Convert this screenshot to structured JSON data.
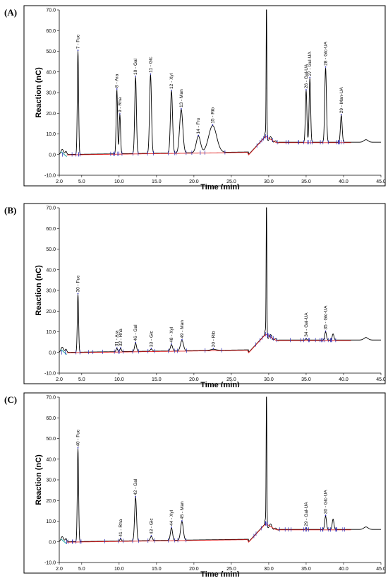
{
  "chart_data": [
    {
      "type": "line",
      "panel_label": "(A)",
      "xlabel": "Time (min)",
      "ylabel": "Reaction (nC)",
      "xlim": [
        2.0,
        45.0
      ],
      "ylim": [
        -10.0,
        70.0
      ],
      "x_ticks": [
        "2.0",
        "5.0",
        "10.0",
        "15.0",
        "20.0",
        "25.0",
        "30.0",
        "35.0",
        "40.0",
        "45.0"
      ],
      "x_tick_values": [
        2,
        5,
        10,
        15,
        20,
        25,
        30,
        35,
        40,
        45
      ],
      "y_ticks": [
        "-10.0",
        "0.0",
        "10.0",
        "20.0",
        "30.0",
        "40.0",
        "50.0",
        "60.0",
        "70.0"
      ],
      "y_tick_values": [
        -10,
        0,
        10,
        20,
        30,
        40,
        50,
        60,
        70
      ],
      "grid": false,
      "baseline_level": 6.0,
      "peaks": [
        {
          "label": "7 - Fuc",
          "time": 4.5,
          "height": 50,
          "width": 0.12
        },
        {
          "label": "8 - Ara",
          "time": 9.7,
          "height": 31,
          "width": 0.13
        },
        {
          "label": "9 - Rha",
          "time": 10.1,
          "height": 19,
          "width": 0.13
        },
        {
          "label": "10 - Gal",
          "time": 12.2,
          "height": 37,
          "width": 0.16
        },
        {
          "label": "11 - Glc",
          "time": 14.2,
          "height": 38,
          "width": 0.18
        },
        {
          "label": "12 - Xyl",
          "time": 17.0,
          "height": 30,
          "width": 0.2
        },
        {
          "label": "13 - Man",
          "time": 18.3,
          "height": 21,
          "width": 0.3
        },
        {
          "label": "14 - Fru",
          "time": 20.6,
          "height": 8,
          "width": 0.4
        },
        {
          "label": "15 - Rib",
          "time": 22.5,
          "height": 13,
          "width": 0.75
        },
        {
          "label": "",
          "time": 29.7,
          "height": 70,
          "width": 0.06
        },
        {
          "label": "26 - Gal-UA",
          "time": 35.0,
          "height": 25,
          "width": 0.14
        },
        {
          "label": "27 - Gul-UA",
          "time": 35.5,
          "height": 31,
          "width": 0.14
        },
        {
          "label": "28 - Glc-UA",
          "time": 37.6,
          "height": 36,
          "width": 0.16
        },
        {
          "label": "29 - Man-UA",
          "time": 39.7,
          "height": 13,
          "width": 0.16
        }
      ]
    },
    {
      "type": "line",
      "panel_label": "(B)",
      "xlabel": "Time (min)",
      "ylabel": "Reaction (nC)",
      "xlim": [
        2.0,
        45.0
      ],
      "ylim": [
        -10.0,
        70.0
      ],
      "x_ticks": [
        "2.0",
        "5.0",
        "10.0",
        "15.0",
        "20.0",
        "25.0",
        "30.0",
        "35.0",
        "40.0",
        "45.0"
      ],
      "x_tick_values": [
        2,
        5,
        10,
        15,
        20,
        25,
        30,
        35,
        40,
        45
      ],
      "y_ticks": [
        "-10.0",
        "0.0",
        "10.0",
        "20.0",
        "30.0",
        "40.0",
        "50.0",
        "60.0",
        "70.0"
      ],
      "y_tick_values": [
        -10,
        0,
        10,
        20,
        30,
        40,
        50,
        60,
        70
      ],
      "grid": false,
      "baseline_level": 6.0,
      "peaks": [
        {
          "label": "30 - Fuc",
          "time": 4.5,
          "height": 28,
          "width": 0.12
        },
        {
          "label": "31 - Ara",
          "time": 9.7,
          "height": 1.5,
          "width": 0.15
        },
        {
          "label": "32 - Rha",
          "time": 10.2,
          "height": 1.5,
          "width": 0.15
        },
        {
          "label": "46 - Gal",
          "time": 12.2,
          "height": 4,
          "width": 0.18
        },
        {
          "label": "33 - Glc",
          "time": 14.3,
          "height": 1,
          "width": 0.2
        },
        {
          "label": "48 - Xyl",
          "time": 17.0,
          "height": 3,
          "width": 0.2
        },
        {
          "label": "49 - Man",
          "time": 18.4,
          "height": 5,
          "width": 0.28
        },
        {
          "label": "20 - Rib",
          "time": 22.6,
          "height": 0.5,
          "width": 0.5
        },
        {
          "label": "",
          "time": 29.7,
          "height": 70,
          "width": 0.06
        },
        {
          "label": "34 - Gal-UA",
          "time": 35.0,
          "height": 0.5,
          "width": 0.15
        },
        {
          "label": "35 - Glc-UA",
          "time": 37.6,
          "height": 4,
          "width": 0.16
        },
        {
          "label": "",
          "time": 38.6,
          "height": 3,
          "width": 0.16
        }
      ]
    },
    {
      "type": "line",
      "panel_label": "(C)",
      "xlabel": "Time (min)",
      "ylabel": "Reaction (nC)",
      "xlim": [
        2.0,
        45.0
      ],
      "ylim": [
        -10.0,
        70.0
      ],
      "x_ticks": [
        "2.0",
        "5.0",
        "10.0",
        "15.0",
        "20.0",
        "25.0",
        "30.0",
        "35.0",
        "40.0",
        "45.0"
      ],
      "x_tick_values": [
        2,
        5,
        10,
        15,
        20,
        25,
        30,
        35,
        40,
        45
      ],
      "y_ticks": [
        "-10.0",
        "0.0",
        "10.0",
        "20.0",
        "30.0",
        "40.0",
        "50.0",
        "60.0",
        "70.0"
      ],
      "y_tick_values": [
        -10,
        0,
        10,
        20,
        30,
        40,
        50,
        60,
        70
      ],
      "grid": false,
      "baseline_level": 6.0,
      "peaks": [
        {
          "label": "40 - Fuc",
          "time": 4.5,
          "height": 45,
          "width": 0.12
        },
        {
          "label": "41 - Rha",
          "time": 10.2,
          "height": 1,
          "width": 0.15
        },
        {
          "label": "42 - Gal",
          "time": 12.2,
          "height": 21,
          "width": 0.18
        },
        {
          "label": "43 - Glc",
          "time": 14.3,
          "height": 2,
          "width": 0.2
        },
        {
          "label": "44 - Xyl",
          "time": 17.0,
          "height": 6,
          "width": 0.2
        },
        {
          "label": "45 - Man",
          "time": 18.4,
          "height": 9,
          "width": 0.25
        },
        {
          "label": "",
          "time": 29.7,
          "height": 70,
          "width": 0.06
        },
        {
          "label": "29 - Gal-UA",
          "time": 35.0,
          "height": 0.5,
          "width": 0.15
        },
        {
          "label": "30 - Glc-UA",
          "time": 37.6,
          "height": 6.5,
          "width": 0.16
        },
        {
          "label": "",
          "time": 38.6,
          "height": 5,
          "width": 0.16
        }
      ]
    }
  ],
  "colors": {
    "trace": "#000000",
    "baseline": "#e02020",
    "markers": "#2a2ab8",
    "teal": "#16a3a3",
    "frame": "#000000"
  }
}
